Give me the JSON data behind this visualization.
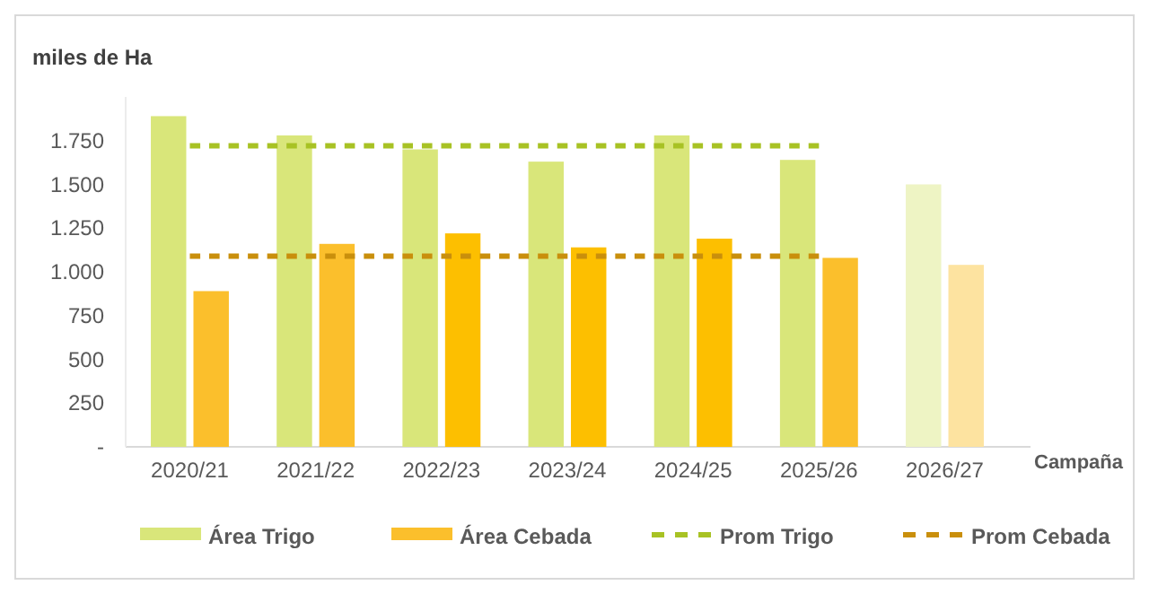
{
  "chart_data": {
    "type": "bar",
    "ylabel": "miles de Ha",
    "xlabel": "Campaña",
    "categories": [
      "2020/21",
      "2021/22",
      "2022/23",
      "2023/24",
      "2024/25",
      "2025/26",
      "2026/27"
    ],
    "series": [
      {
        "name": "Área Trigo",
        "color": "#d9e67a",
        "colors": [
          "#d9e67a",
          "#d9e67a",
          "#d9e67a",
          "#d9e67a",
          "#d9e67a",
          "#d9e67a",
          "#eef4c4"
        ],
        "values": [
          1890,
          1780,
          1700,
          1630,
          1780,
          1640,
          1500
        ]
      },
      {
        "name": "Área Cebada",
        "color": "#fbbf2c",
        "colors": [
          "#fbbf2c",
          "#fbbf2c",
          "#fdbf00",
          "#fdbf00",
          "#fdbf00",
          "#fbbf2c",
          "#fde3a0"
        ],
        "values": [
          890,
          1160,
          1220,
          1140,
          1190,
          1080,
          1040
        ]
      },
      {
        "name": "Prom Trigo",
        "type": "line",
        "color": "#a8c224",
        "line_style": "dashed",
        "values": [
          1720,
          1720,
          1720,
          1720,
          1720,
          1720,
          null
        ]
      },
      {
        "name": "Prom Cebada",
        "type": "line",
        "color": "#c98f0c",
        "line_style": "dashed",
        "values": [
          1090,
          1090,
          1090,
          1090,
          1090,
          1090,
          null
        ]
      }
    ],
    "ylim": [
      0,
      2000
    ],
    "yticks": [
      {
        "value": 0,
        "label": "-"
      },
      {
        "value": 250,
        "label": "250"
      },
      {
        "value": 500,
        "label": "500"
      },
      {
        "value": 750,
        "label": "750"
      },
      {
        "value": 1000,
        "label": "1.000"
      },
      {
        "value": 1250,
        "label": "1.250"
      },
      {
        "value": 1500,
        "label": "1.500"
      },
      {
        "value": 1750,
        "label": "1.750"
      }
    ],
    "grid": false,
    "legend": "bottom"
  }
}
